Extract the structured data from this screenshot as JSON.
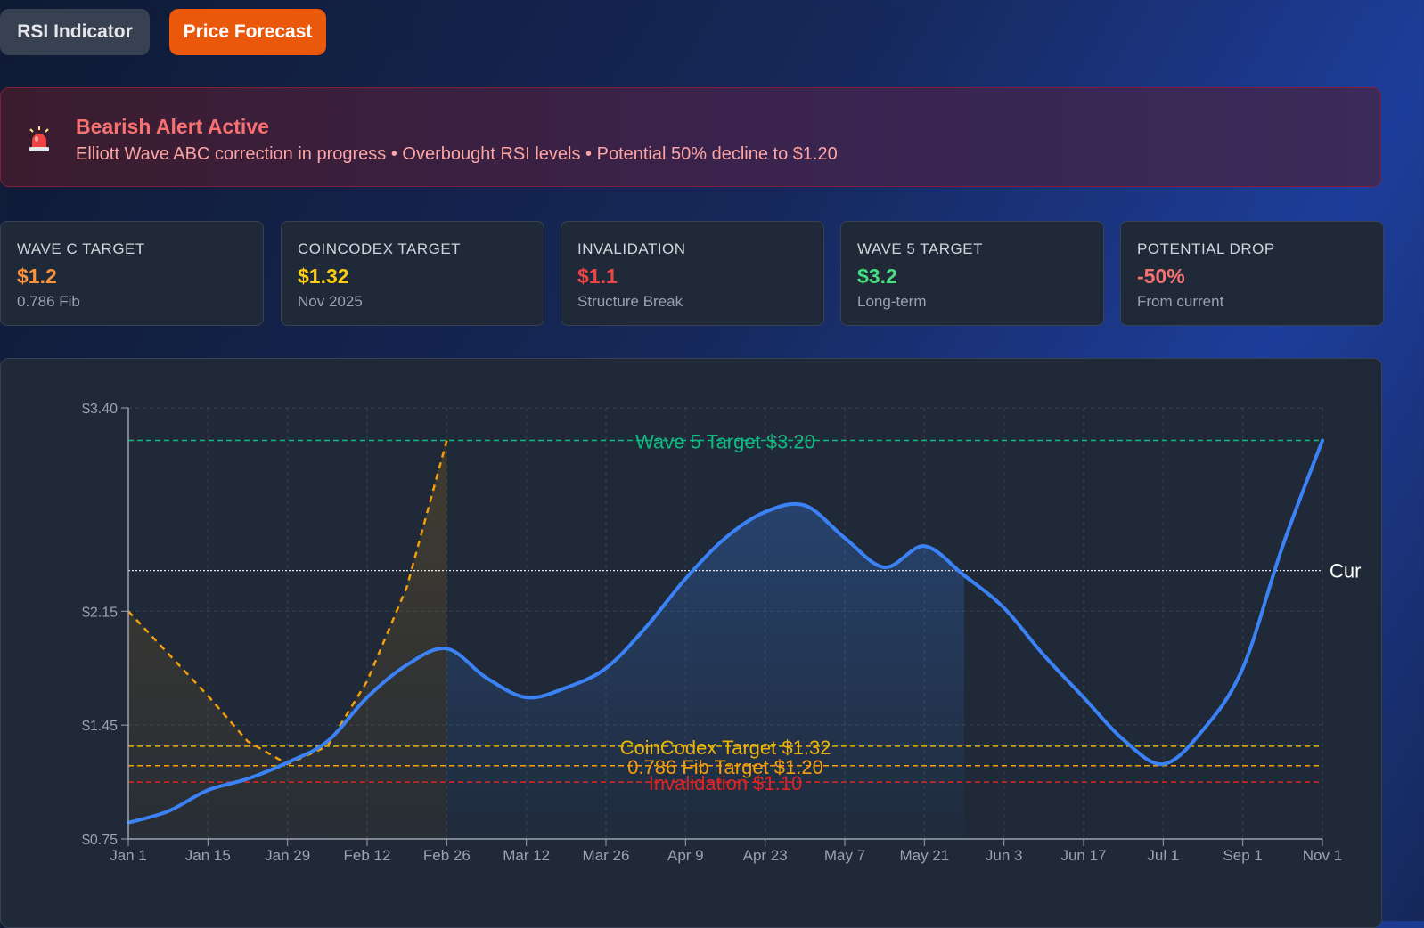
{
  "tabs": [
    {
      "label": "RSI Indicator"
    },
    {
      "label": "Price Forecast"
    }
  ],
  "alert": {
    "icon": "siren-icon",
    "title": "Bearish Alert Active",
    "message": "Elliott Wave ABC correction in progress • Overbought RSI levels • Potential 50% decline to $1.20"
  },
  "cards": [
    {
      "label": "WAVE C TARGET",
      "value": "$1.2",
      "sub": "0.786 Fib",
      "color": "#fb923c"
    },
    {
      "label": "COINCODEX TARGET",
      "value": "$1.32",
      "sub": "Nov 2025",
      "color": "#facc15"
    },
    {
      "label": "INVALIDATION",
      "value": "$1.1",
      "sub": "Structure Break",
      "color": "#ef4444"
    },
    {
      "label": "WAVE 5 TARGET",
      "value": "$3.2",
      "sub": "Long-term",
      "color": "#4ade80"
    },
    {
      "label": "POTENTIAL DROP",
      "value": "-50%",
      "sub": "From current",
      "color": "#f87171"
    }
  ],
  "chart_data": {
    "type": "line",
    "categories": [
      "Jan 1",
      "Jan 15",
      "Jan 29",
      "Feb 12",
      "Feb 26",
      "Mar 12",
      "Mar 26",
      "Apr 9",
      "Apr 23",
      "May 7",
      "May 21",
      "Jun 3",
      "Jun 17",
      "Jul 1",
      "Sep 1",
      "Nov 1"
    ],
    "y_ticks": [
      "$0.75",
      "$1.45",
      "$2.15",
      "$3.40"
    ],
    "ylim": [
      0.75,
      3.4
    ],
    "y_tick_values": [
      0.75,
      1.45,
      2.15,
      3.4
    ],
    "series": [
      {
        "name": "Price",
        "color": "#3b82f6",
        "x": [
          0,
          0.5,
          1,
          1.5,
          2,
          2.5,
          3,
          3.5,
          4,
          4.5,
          5,
          5.5,
          6,
          6.5,
          7,
          7.5,
          8,
          8.5,
          9,
          9.5,
          10,
          10.5,
          11,
          11.5,
          12,
          12.5,
          13,
          13.5,
          14,
          14.5,
          15
        ],
        "values": [
          0.85,
          0.92,
          1.05,
          1.12,
          1.22,
          1.35,
          1.62,
          1.82,
          1.92,
          1.74,
          1.62,
          1.68,
          1.8,
          2.05,
          2.35,
          2.6,
          2.76,
          2.8,
          2.6,
          2.42,
          2.55,
          2.37,
          2.17,
          1.88,
          1.62,
          1.36,
          1.21,
          1.42,
          1.8,
          2.55,
          3.2
        ]
      },
      {
        "name": "Wave ABC projection",
        "color": "#f59e0b",
        "x": [
          0,
          1,
          1.5,
          2,
          2.5,
          3,
          3.5,
          4
        ],
        "values": [
          2.15,
          1.63,
          1.35,
          1.21,
          1.32,
          1.72,
          2.3,
          3.2
        ]
      }
    ],
    "shaded_region_x": [
      4,
      10.5
    ],
    "reference_lines": [
      {
        "label": "Wave 5 Target $3.20",
        "value": 3.2,
        "color": "#10b981"
      },
      {
        "label": "Cur",
        "value": 2.4,
        "color": "#e5e7eb"
      },
      {
        "label": "CoinCodex Target $1.32",
        "value": 1.32,
        "color": "#eab308"
      },
      {
        "label": "0.786 Fib Target $1.20",
        "value": 1.2,
        "color": "#f59e0b"
      },
      {
        "label": "Invalidation $1.10",
        "value": 1.1,
        "color": "#dc2626"
      }
    ],
    "grid": true,
    "title": "",
    "xlabel": "",
    "ylabel": ""
  }
}
